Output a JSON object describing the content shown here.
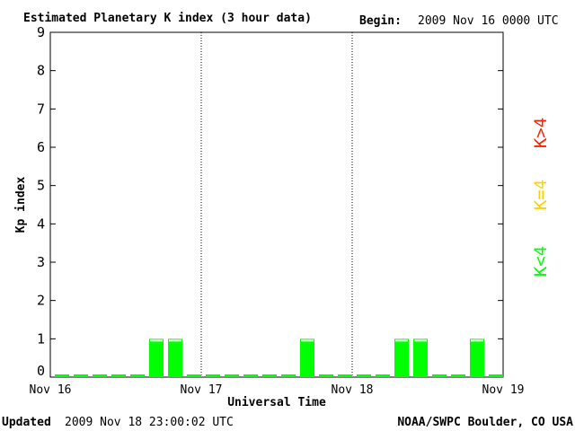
{
  "header": {
    "title": "Estimated Planetary K index (3 hour data)",
    "begin_label": "Begin:",
    "begin_value": "2009 Nov 16 0000 UTC"
  },
  "footer": {
    "updated_label": "Updated",
    "updated_value": "2009 Nov 18 23:00:02 UTC",
    "source": "NOAA/SWPC Boulder, CO USA"
  },
  "legend": {
    "items": [
      {
        "label": "K>4",
        "color": "#ff2000"
      },
      {
        "label": "K=4",
        "color": "#ffd000"
      },
      {
        "label": "K<4",
        "color": "#00ff00"
      }
    ]
  },
  "chart_data": {
    "type": "bar",
    "title": "Estimated Planetary K index (3 hour data)",
    "xlabel": "Universal Time",
    "ylabel": "Kp index",
    "ylim": [
      0,
      9
    ],
    "yticks": [
      "0",
      "1",
      "2",
      "3",
      "4",
      "5",
      "6",
      "7",
      "8",
      "9"
    ],
    "xtick_labels": [
      "Nov 16",
      "Nov 17",
      "Nov 18",
      "Nov 19"
    ],
    "day_dividers": "dotted",
    "bar_color": "#00ff00",
    "interval_hours": 3,
    "values": [
      0,
      0,
      0,
      0,
      0,
      1,
      1,
      0,
      0,
      0,
      0,
      0,
      0,
      1,
      0,
      0,
      0,
      0,
      1,
      1,
      0,
      0,
      1,
      0
    ]
  }
}
